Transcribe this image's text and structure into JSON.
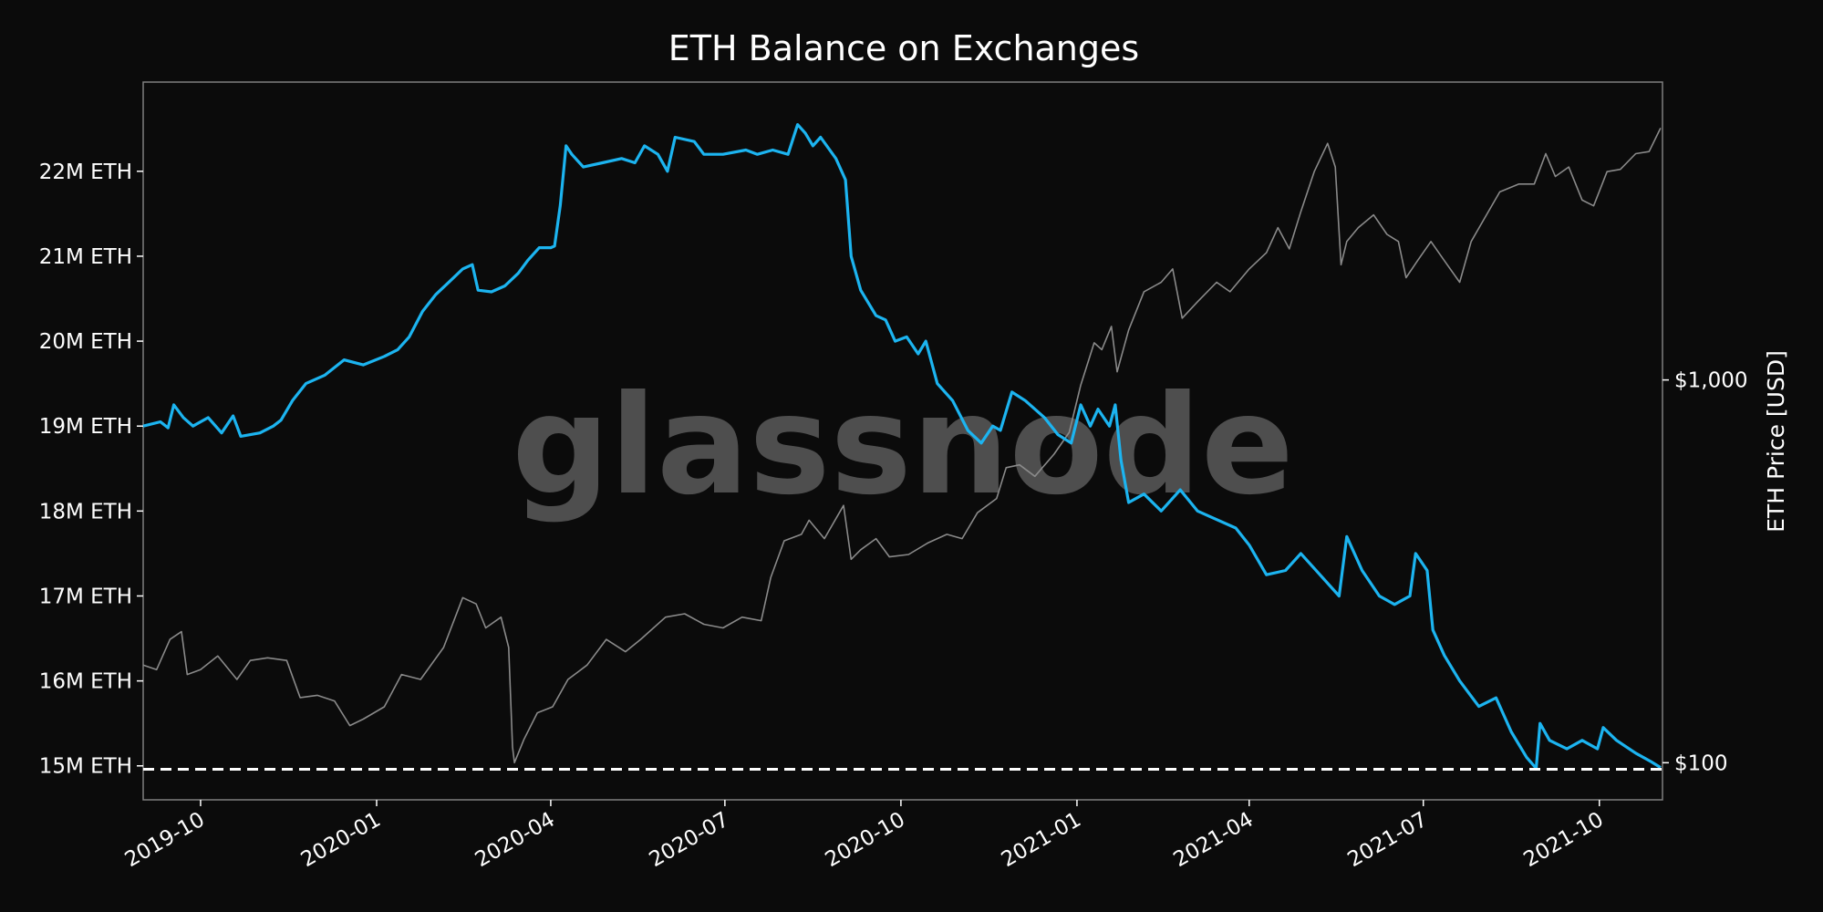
{
  "chart_data": {
    "type": "line",
    "title": "ETH Balance on Exchanges",
    "watermark": "glassnode",
    "y_left": {
      "ticks": [
        {
          "value": 15000000,
          "label": "15M ETH"
        },
        {
          "value": 16000000,
          "label": "16M ETH"
        },
        {
          "value": 17000000,
          "label": "17M ETH"
        },
        {
          "value": 18000000,
          "label": "18M ETH"
        },
        {
          "value": 19000000,
          "label": "19M ETH"
        },
        {
          "value": 20000000,
          "label": "20M ETH"
        },
        {
          "value": 21000000,
          "label": "21M ETH"
        },
        {
          "value": 22000000,
          "label": "22M ETH"
        }
      ],
      "range": [
        14600000,
        23050000
      ]
    },
    "y_right": {
      "label": "ETH Price [USD]",
      "scale": "log",
      "ticks": [
        {
          "value": 100,
          "label": "$100"
        },
        {
          "value": 1000,
          "label": "$1,000"
        }
      ],
      "range": [
        80,
        6000
      ]
    },
    "x": {
      "range": [
        "2019-09-01",
        "2021-11-03"
      ],
      "ticks": [
        {
          "value": "2019-10-01",
          "label": "2019-10"
        },
        {
          "value": "2020-01-01",
          "label": "2020-01"
        },
        {
          "value": "2020-04-01",
          "label": "2020-04"
        },
        {
          "value": "2020-07-01",
          "label": "2020-07"
        },
        {
          "value": "2020-10-01",
          "label": "2020-10"
        },
        {
          "value": "2021-01-01",
          "label": "2021-01"
        },
        {
          "value": "2021-04-01",
          "label": "2021-04"
        },
        {
          "value": "2021-07-01",
          "label": "2021-07"
        },
        {
          "value": "2021-10-01",
          "label": "2021-10"
        }
      ]
    },
    "reference_line": {
      "value": 14960000,
      "style": "dashed",
      "color": "#ffffff"
    },
    "series": [
      {
        "axis": "left",
        "color": "#1cb4f0",
        "points": [
          [
            "2019-09-01",
            19000000
          ],
          [
            "2019-09-10",
            19050000
          ],
          [
            "2019-09-14",
            18980000
          ],
          [
            "2019-09-17",
            19250000
          ],
          [
            "2019-09-22",
            19100000
          ],
          [
            "2019-09-27",
            19000000
          ],
          [
            "2019-10-05",
            19100000
          ],
          [
            "2019-10-12",
            18920000
          ],
          [
            "2019-10-18",
            19120000
          ],
          [
            "2019-10-22",
            18880000
          ],
          [
            "2019-11-01",
            18920000
          ],
          [
            "2019-11-08",
            19000000
          ],
          [
            "2019-11-12",
            19070000
          ],
          [
            "2019-11-18",
            19300000
          ],
          [
            "2019-11-25",
            19500000
          ],
          [
            "2019-12-05",
            19600000
          ],
          [
            "2019-12-15",
            19780000
          ],
          [
            "2019-12-25",
            19720000
          ],
          [
            "2020-01-05",
            19820000
          ],
          [
            "2020-01-12",
            19900000
          ],
          [
            "2020-01-18",
            20050000
          ],
          [
            "2020-01-25",
            20350000
          ],
          [
            "2020-02-01",
            20550000
          ],
          [
            "2020-02-08",
            20700000
          ],
          [
            "2020-02-15",
            20850000
          ],
          [
            "2020-02-20",
            20900000
          ],
          [
            "2020-02-23",
            20600000
          ],
          [
            "2020-03-01",
            20580000
          ],
          [
            "2020-03-08",
            20650000
          ],
          [
            "2020-03-15",
            20800000
          ],
          [
            "2020-03-20",
            20950000
          ],
          [
            "2020-03-26",
            21100000
          ],
          [
            "2020-04-01",
            21100000
          ],
          [
            "2020-04-03",
            21120000
          ],
          [
            "2020-04-06",
            21600000
          ],
          [
            "2020-04-09",
            22300000
          ],
          [
            "2020-04-12",
            22200000
          ],
          [
            "2020-04-18",
            22050000
          ],
          [
            "2020-04-28",
            22100000
          ],
          [
            "2020-05-08",
            22150000
          ],
          [
            "2020-05-15",
            22100000
          ],
          [
            "2020-05-20",
            22300000
          ],
          [
            "2020-05-27",
            22200000
          ],
          [
            "2020-06-01",
            22000000
          ],
          [
            "2020-06-05",
            22400000
          ],
          [
            "2020-06-15",
            22350000
          ],
          [
            "2020-06-20",
            22200000
          ],
          [
            "2020-06-30",
            22200000
          ],
          [
            "2020-07-12",
            22250000
          ],
          [
            "2020-07-18",
            22200000
          ],
          [
            "2020-07-26",
            22250000
          ],
          [
            "2020-08-03",
            22200000
          ],
          [
            "2020-08-08",
            22550000
          ],
          [
            "2020-08-12",
            22450000
          ],
          [
            "2020-08-16",
            22300000
          ],
          [
            "2020-08-20",
            22400000
          ],
          [
            "2020-08-28",
            22150000
          ],
          [
            "2020-09-02",
            21900000
          ],
          [
            "2020-09-05",
            21000000
          ],
          [
            "2020-09-10",
            20600000
          ],
          [
            "2020-09-18",
            20300000
          ],
          [
            "2020-09-23",
            20250000
          ],
          [
            "2020-09-28",
            20000000
          ],
          [
            "2020-10-04",
            20050000
          ],
          [
            "2020-10-10",
            19850000
          ],
          [
            "2020-10-14",
            20000000
          ],
          [
            "2020-10-20",
            19500000
          ],
          [
            "2020-10-28",
            19300000
          ],
          [
            "2020-11-05",
            18950000
          ],
          [
            "2020-11-12",
            18800000
          ],
          [
            "2020-11-18",
            19000000
          ],
          [
            "2020-11-22",
            18950000
          ],
          [
            "2020-11-28",
            19400000
          ],
          [
            "2020-12-05",
            19300000
          ],
          [
            "2020-12-15",
            19100000
          ],
          [
            "2020-12-22",
            18900000
          ],
          [
            "2020-12-29",
            18800000
          ],
          [
            "2021-01-03",
            19250000
          ],
          [
            "2021-01-08",
            19000000
          ],
          [
            "2021-01-12",
            19200000
          ],
          [
            "2021-01-18",
            19000000
          ],
          [
            "2021-01-21",
            19250000
          ],
          [
            "2021-01-24",
            18600000
          ],
          [
            "2021-01-28",
            18100000
          ],
          [
            "2021-02-05",
            18200000
          ],
          [
            "2021-02-14",
            18000000
          ],
          [
            "2021-02-24",
            18250000
          ],
          [
            "2021-03-05",
            18000000
          ],
          [
            "2021-03-15",
            17900000
          ],
          [
            "2021-03-25",
            17800000
          ],
          [
            "2021-04-01",
            17600000
          ],
          [
            "2021-04-10",
            17250000
          ],
          [
            "2021-04-20",
            17300000
          ],
          [
            "2021-04-28",
            17500000
          ],
          [
            "2021-05-08",
            17250000
          ],
          [
            "2021-05-18",
            17000000
          ],
          [
            "2021-05-22",
            17700000
          ],
          [
            "2021-05-30",
            17300000
          ],
          [
            "2021-06-08",
            17000000
          ],
          [
            "2021-06-16",
            16900000
          ],
          [
            "2021-06-24",
            17000000
          ],
          [
            "2021-06-27",
            17500000
          ],
          [
            "2021-07-03",
            17300000
          ],
          [
            "2021-07-06",
            16600000
          ],
          [
            "2021-07-12",
            16300000
          ],
          [
            "2021-07-20",
            16000000
          ],
          [
            "2021-07-30",
            15700000
          ],
          [
            "2021-08-08",
            15800000
          ],
          [
            "2021-08-16",
            15400000
          ],
          [
            "2021-08-24",
            15100000
          ],
          [
            "2021-08-29",
            14970000
          ],
          [
            "2021-08-31",
            15500000
          ],
          [
            "2021-09-05",
            15300000
          ],
          [
            "2021-09-14",
            15200000
          ],
          [
            "2021-09-22",
            15300000
          ],
          [
            "2021-09-30",
            15200000
          ],
          [
            "2021-10-03",
            15450000
          ],
          [
            "2021-10-10",
            15300000
          ],
          [
            "2021-10-20",
            15150000
          ],
          [
            "2021-10-28",
            15050000
          ],
          [
            "2021-11-02",
            14980000
          ]
        ]
      },
      {
        "axis": "right",
        "color": "#8a8a8a",
        "points": [
          [
            "2019-09-01",
            180
          ],
          [
            "2019-09-08",
            175
          ],
          [
            "2019-09-15",
            210
          ],
          [
            "2019-09-21",
            220
          ],
          [
            "2019-09-24",
            170
          ],
          [
            "2019-10-01",
            175
          ],
          [
            "2019-10-10",
            190
          ],
          [
            "2019-10-20",
            165
          ],
          [
            "2019-10-27",
            185
          ],
          [
            "2019-11-05",
            188
          ],
          [
            "2019-11-15",
            185
          ],
          [
            "2019-11-22",
            148
          ],
          [
            "2019-12-01",
            150
          ],
          [
            "2019-12-10",
            145
          ],
          [
            "2019-12-18",
            125
          ],
          [
            "2019-12-25",
            130
          ],
          [
            "2020-01-05",
            140
          ],
          [
            "2020-01-14",
            170
          ],
          [
            "2020-01-24",
            165
          ],
          [
            "2020-02-05",
            200
          ],
          [
            "2020-02-15",
            270
          ],
          [
            "2020-02-22",
            260
          ],
          [
            "2020-02-27",
            225
          ],
          [
            "2020-03-06",
            240
          ],
          [
            "2020-03-10",
            200
          ],
          [
            "2020-03-12",
            110
          ],
          [
            "2020-03-13",
            100
          ],
          [
            "2020-03-18",
            115
          ],
          [
            "2020-03-25",
            135
          ],
          [
            "2020-04-02",
            140
          ],
          [
            "2020-04-10",
            165
          ],
          [
            "2020-04-20",
            180
          ],
          [
            "2020-04-30",
            210
          ],
          [
            "2020-05-10",
            195
          ],
          [
            "2020-05-18",
            210
          ],
          [
            "2020-05-31",
            240
          ],
          [
            "2020-06-10",
            245
          ],
          [
            "2020-06-20",
            230
          ],
          [
            "2020-06-30",
            225
          ],
          [
            "2020-07-10",
            240
          ],
          [
            "2020-07-20",
            235
          ],
          [
            "2020-07-25",
            305
          ],
          [
            "2020-08-01",
            380
          ],
          [
            "2020-08-10",
            395
          ],
          [
            "2020-08-14",
            430
          ],
          [
            "2020-08-22",
            385
          ],
          [
            "2020-09-01",
            470
          ],
          [
            "2020-09-05",
            340
          ],
          [
            "2020-09-10",
            360
          ],
          [
            "2020-09-18",
            385
          ],
          [
            "2020-09-25",
            345
          ],
          [
            "2020-10-05",
            350
          ],
          [
            "2020-10-15",
            375
          ],
          [
            "2020-10-25",
            395
          ],
          [
            "2020-11-02",
            385
          ],
          [
            "2020-11-10",
            450
          ],
          [
            "2020-11-20",
            490
          ],
          [
            "2020-11-25",
            590
          ],
          [
            "2020-12-02",
            600
          ],
          [
            "2020-12-10",
            560
          ],
          [
            "2020-12-20",
            640
          ],
          [
            "2020-12-28",
            730
          ],
          [
            "2021-01-03",
            970
          ],
          [
            "2021-01-10",
            1250
          ],
          [
            "2021-01-14",
            1200
          ],
          [
            "2021-01-19",
            1380
          ],
          [
            "2021-01-22",
            1050
          ],
          [
            "2021-01-28",
            1350
          ],
          [
            "2021-02-05",
            1700
          ],
          [
            "2021-02-14",
            1800
          ],
          [
            "2021-02-20",
            1950
          ],
          [
            "2021-02-25",
            1450
          ],
          [
            "2021-03-05",
            1600
          ],
          [
            "2021-03-15",
            1800
          ],
          [
            "2021-03-22",
            1700
          ],
          [
            "2021-04-01",
            1950
          ],
          [
            "2021-04-10",
            2150
          ],
          [
            "2021-04-16",
            2500
          ],
          [
            "2021-04-22",
            2200
          ],
          [
            "2021-04-28",
            2750
          ],
          [
            "2021-05-05",
            3500
          ],
          [
            "2021-05-12",
            4150
          ],
          [
            "2021-05-16",
            3600
          ],
          [
            "2021-05-19",
            2000
          ],
          [
            "2021-05-22",
            2300
          ],
          [
            "2021-05-28",
            2500
          ],
          [
            "2021-06-05",
            2700
          ],
          [
            "2021-06-12",
            2400
          ],
          [
            "2021-06-18",
            2300
          ],
          [
            "2021-06-22",
            1850
          ],
          [
            "2021-06-28",
            2050
          ],
          [
            "2021-07-05",
            2300
          ],
          [
            "2021-07-12",
            2050
          ],
          [
            "2021-07-20",
            1800
          ],
          [
            "2021-07-26",
            2300
          ],
          [
            "2021-08-03",
            2700
          ],
          [
            "2021-08-10",
            3100
          ],
          [
            "2021-08-20",
            3250
          ],
          [
            "2021-08-28",
            3250
          ],
          [
            "2021-09-03",
            3900
          ],
          [
            "2021-09-08",
            3400
          ],
          [
            "2021-09-15",
            3600
          ],
          [
            "2021-09-22",
            2950
          ],
          [
            "2021-09-28",
            2850
          ],
          [
            "2021-10-05",
            3500
          ],
          [
            "2021-10-12",
            3550
          ],
          [
            "2021-10-20",
            3900
          ],
          [
            "2021-10-27",
            3950
          ],
          [
            "2021-11-02",
            4550
          ]
        ]
      }
    ]
  }
}
